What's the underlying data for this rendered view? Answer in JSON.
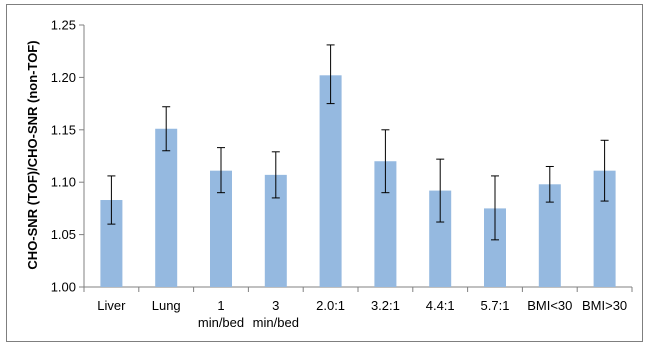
{
  "chart_data": {
    "type": "bar",
    "title": "",
    "xlabel": "",
    "ylabel": "CHO-SNR (TOF)/CHO-SNR (non-TOF)",
    "ylim": [
      1.0,
      1.25
    ],
    "yticks": [
      "1.00",
      "1.05",
      "1.10",
      "1.15",
      "1.20",
      "1.25"
    ],
    "categories": [
      [
        "Liver"
      ],
      [
        "Lung"
      ],
      [
        "1",
        "min/bed"
      ],
      [
        "3",
        "min/bed"
      ],
      [
        "2.0:1"
      ],
      [
        "3.2:1"
      ],
      [
        "4.4:1"
      ],
      [
        "5.7:1"
      ],
      [
        "BMI<30"
      ],
      [
        "BMI>30"
      ]
    ],
    "values": [
      1.083,
      1.151,
      1.111,
      1.107,
      1.202,
      1.12,
      1.092,
      1.075,
      1.098,
      1.111
    ],
    "error_low": [
      1.06,
      1.13,
      1.09,
      1.085,
      1.175,
      1.09,
      1.062,
      1.045,
      1.081,
      1.082
    ],
    "error_high": [
      1.106,
      1.172,
      1.133,
      1.129,
      1.231,
      1.15,
      1.122,
      1.106,
      1.115,
      1.14
    ],
    "colors": {
      "bar": "#95B9E0",
      "axis": "#808080",
      "error": "#000000"
    },
    "grid": false,
    "legend": "none"
  }
}
